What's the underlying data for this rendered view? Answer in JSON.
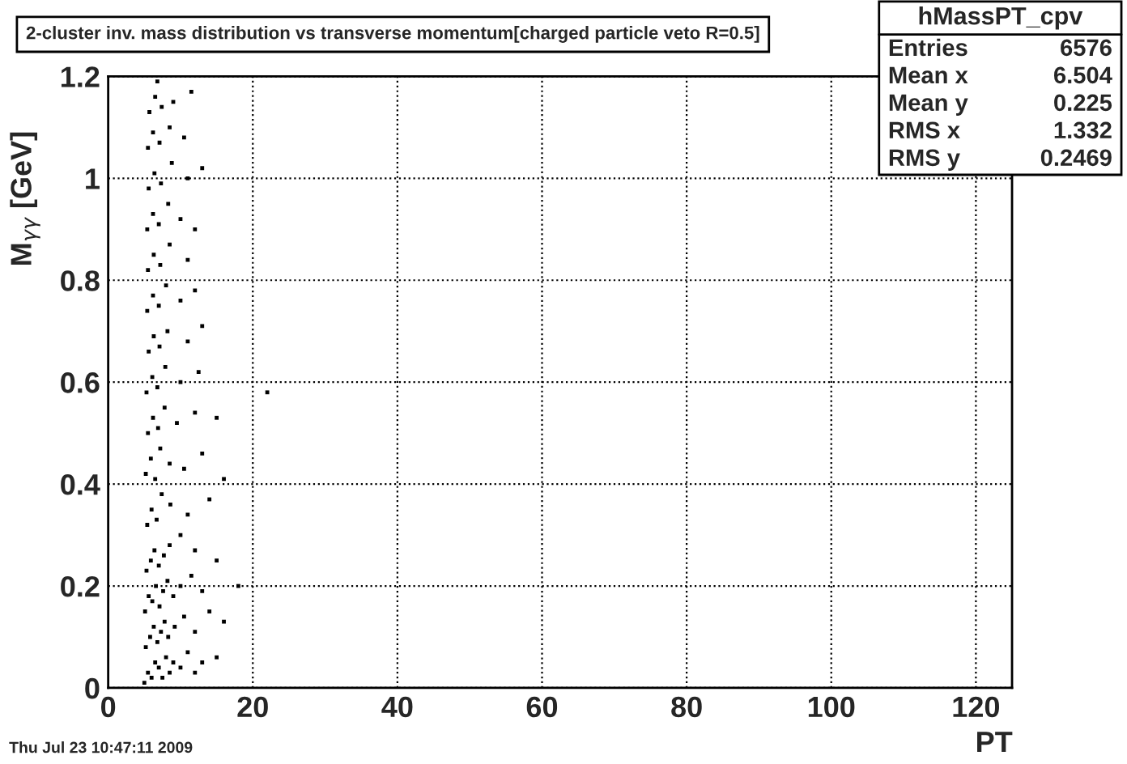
{
  "chart_data": {
    "type": "scatter",
    "title": "2-cluster inv. mass distribution vs transverse momentum[charged particle veto R=0.5]",
    "xlabel": "PT",
    "ylabel": "M$_{γγ}$ [GeV]",
    "xlim": [
      0,
      125
    ],
    "ylim": [
      0,
      1.2
    ],
    "xticks": [
      0,
      20,
      40,
      60,
      80,
      100,
      120
    ],
    "yticks": [
      0,
      0.2,
      0.4,
      0.6,
      0.8,
      1,
      1.2
    ],
    "grid": true,
    "marker": "square",
    "annotations": [
      "hMassPT_cpv",
      "Entries",
      "6576",
      "Mean x",
      "6.504",
      "Mean y",
      "0.225",
      "RMS x",
      "1.332",
      "RMS y",
      "0.2469",
      "Thu Jul 23 10:47:11 2009"
    ],
    "series": [
      {
        "color": "#000000",
        "x": [
          5,
          5.5,
          6,
          6.5,
          7,
          7.5,
          8,
          8.5,
          9,
          10,
          11,
          12,
          13,
          15,
          5.2,
          5.8,
          6.3,
          6.8,
          7.3,
          7.8,
          8.3,
          9.2,
          10.5,
          12,
          14,
          16,
          5.1,
          5.6,
          6.1,
          6.6,
          7.1,
          7.6,
          8.2,
          9,
          10,
          11.5,
          13,
          18,
          5.3,
          5.9,
          6.4,
          7,
          7.7,
          8.5,
          10,
          12,
          15,
          5.4,
          6,
          6.7,
          7.4,
          8.6,
          11,
          14,
          5.2,
          5.9,
          6.5,
          7.2,
          8.5,
          10.5,
          13,
          16,
          5.5,
          6.2,
          6.9,
          7.8,
          9.5,
          12,
          15,
          5.3,
          6.1,
          6.8,
          7.9,
          10,
          12.5,
          22,
          5.6,
          6.3,
          7.1,
          8.2,
          11,
          13,
          5.4,
          6.2,
          7,
          8,
          10,
          12,
          5.5,
          6.3,
          7.2,
          8.5,
          11,
          5.4,
          6.2,
          7,
          8.3,
          10,
          12,
          5.6,
          6.4,
          7.3,
          8.8,
          11,
          13,
          5.5,
          6.2,
          7.1,
          8.5,
          10.5,
          5.7,
          6.5,
          7.4,
          9,
          11.5,
          6.8
        ],
        "values": [
          0.01,
          0.03,
          0.02,
          0.05,
          0.04,
          0.02,
          0.06,
          0.03,
          0.05,
          0.04,
          0.07,
          0.03,
          0.05,
          0.06,
          0.08,
          0.1,
          0.12,
          0.09,
          0.11,
          0.13,
          0.1,
          0.12,
          0.14,
          0.11,
          0.15,
          0.13,
          0.15,
          0.18,
          0.17,
          0.2,
          0.16,
          0.19,
          0.21,
          0.18,
          0.2,
          0.22,
          0.19,
          0.2,
          0.23,
          0.25,
          0.27,
          0.24,
          0.26,
          0.28,
          0.3,
          0.27,
          0.25,
          0.32,
          0.35,
          0.33,
          0.38,
          0.36,
          0.34,
          0.37,
          0.42,
          0.45,
          0.41,
          0.47,
          0.44,
          0.43,
          0.46,
          0.41,
          0.5,
          0.53,
          0.51,
          0.55,
          0.52,
          0.54,
          0.53,
          0.58,
          0.61,
          0.59,
          0.63,
          0.6,
          0.62,
          0.58,
          0.66,
          0.69,
          0.67,
          0.7,
          0.68,
          0.71,
          0.74,
          0.77,
          0.75,
          0.79,
          0.76,
          0.78,
          0.82,
          0.85,
          0.83,
          0.87,
          0.84,
          0.9,
          0.93,
          0.91,
          0.95,
          0.92,
          0.9,
          0.98,
          1.01,
          0.99,
          1.03,
          1.0,
          1.02,
          1.06,
          1.09,
          1.07,
          1.1,
          1.08,
          1.13,
          1.16,
          1.14,
          1.15,
          1.17,
          1.19
        ]
      }
    ]
  }
}
